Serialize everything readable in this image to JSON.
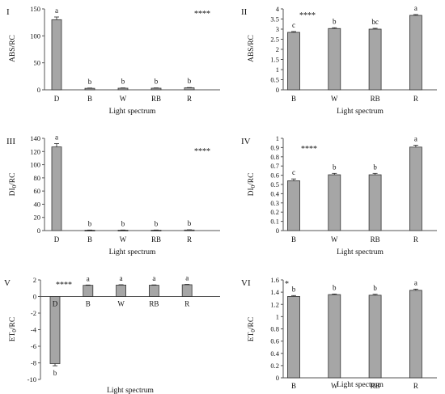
{
  "chart_data": [
    {
      "panel": "I",
      "type": "bar",
      "ylabel": "ABS/RC",
      "xlabel": "Light spectrum",
      "categories": [
        "D",
        "B",
        "W",
        "RB",
        "R"
      ],
      "values": [
        130,
        2.8,
        3.0,
        3.0,
        3.7
      ],
      "errors": [
        5,
        0.5,
        0.5,
        0.5,
        0.5
      ],
      "letters": [
        "a",
        "b",
        "b",
        "b",
        "b"
      ],
      "significance": "****",
      "ylim": [
        0,
        150
      ],
      "yticks": [
        0,
        50,
        100,
        150
      ]
    },
    {
      "panel": "II",
      "type": "bar",
      "ylabel": "ABS/RC",
      "xlabel": "Light spectrum",
      "categories": [
        "B",
        "W",
        "RB",
        "R"
      ],
      "values": [
        2.84,
        3.03,
        3.0,
        3.68
      ],
      "errors": [
        0.04,
        0.04,
        0.04,
        0.04
      ],
      "letters": [
        "c",
        "b",
        "bc",
        "a"
      ],
      "significance": "****",
      "ylim": [
        0,
        4
      ],
      "yticks": [
        0,
        0.5,
        1,
        1.5,
        2,
        2.5,
        3,
        3.5,
        4
      ]
    },
    {
      "panel": "III",
      "type": "bar",
      "ylabel": "DI0/RC",
      "xlabel": "Light spectrum",
      "categories": [
        "D",
        "B",
        "W",
        "RB",
        "R"
      ],
      "values": [
        127,
        0.55,
        0.6,
        0.6,
        0.9
      ],
      "errors": [
        5,
        0.3,
        0.3,
        0.3,
        0.3
      ],
      "letters": [
        "a",
        "b",
        "b",
        "b",
        "b"
      ],
      "significance": "****",
      "ylim": [
        0,
        140
      ],
      "yticks": [
        0,
        20,
        40,
        60,
        80,
        100,
        120,
        140
      ]
    },
    {
      "panel": "IV",
      "type": "bar",
      "ylabel": "DI0/RC",
      "xlabel": "Light spectrum",
      "categories": [
        "B",
        "W",
        "RB",
        "R"
      ],
      "values": [
        0.54,
        0.605,
        0.605,
        0.905
      ],
      "errors": [
        0.02,
        0.015,
        0.015,
        0.02
      ],
      "letters": [
        "c",
        "b",
        "b",
        "a"
      ],
      "significance": "****",
      "ylim": [
        0,
        1
      ],
      "yticks": [
        0,
        0.1,
        0.2,
        0.3,
        0.4,
        0.5,
        0.6,
        0.7,
        0.8,
        0.9,
        1
      ]
    },
    {
      "panel": "V",
      "type": "bar",
      "ylabel": "ET0/RC",
      "xlabel": "Light spectrum",
      "categories": [
        "D",
        "B",
        "W",
        "RB",
        "R"
      ],
      "values": [
        -8.1,
        1.35,
        1.38,
        1.36,
        1.42
      ],
      "errors": [
        0.25,
        0.04,
        0.04,
        0.04,
        0.04
      ],
      "letters": [
        "b",
        "a",
        "a",
        "a",
        "a"
      ],
      "significance": "****",
      "ylim": [
        -10,
        2
      ],
      "yticks": [
        -10,
        -8,
        -6,
        -4,
        -2,
        0,
        2
      ]
    },
    {
      "panel": "VI",
      "type": "bar",
      "ylabel": "ET0/RC",
      "xlabel": "Light spectrum",
      "categories": [
        "B",
        "W",
        "RB",
        "R"
      ],
      "values": [
        1.33,
        1.36,
        1.35,
        1.43
      ],
      "errors": [
        0.015,
        0.01,
        0.015,
        0.02
      ],
      "letters": [
        "b",
        "b",
        "b",
        "a"
      ],
      "significance": "*",
      "ylim": [
        0,
        1.6
      ],
      "yticks": [
        0,
        0.2,
        0.4,
        0.6,
        0.8,
        1,
        1.2,
        1.4,
        1.6
      ]
    }
  ]
}
